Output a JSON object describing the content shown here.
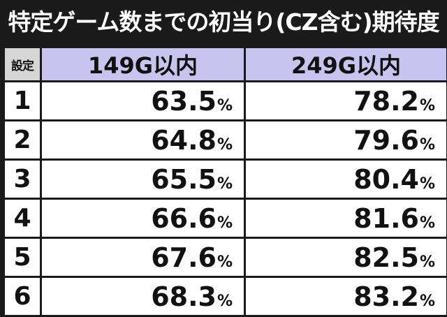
{
  "title": "特定ゲーム数までの初当り(CZ含む)期待度",
  "table": {
    "headers": {
      "setting": "設定",
      "col_a": "149G以内",
      "col_b": "249G以内"
    },
    "unit": "%",
    "rows": [
      {
        "setting": "1",
        "col_a": "63.5",
        "col_b": "78.2"
      },
      {
        "setting": "2",
        "col_a": "64.8",
        "col_b": "79.6"
      },
      {
        "setting": "3",
        "col_a": "65.5",
        "col_b": "80.4"
      },
      {
        "setting": "4",
        "col_a": "66.6",
        "col_b": "81.6"
      },
      {
        "setting": "5",
        "col_a": "67.6",
        "col_b": "82.5"
      },
      {
        "setting": "6",
        "col_a": "68.3",
        "col_b": "83.2"
      }
    ]
  }
}
